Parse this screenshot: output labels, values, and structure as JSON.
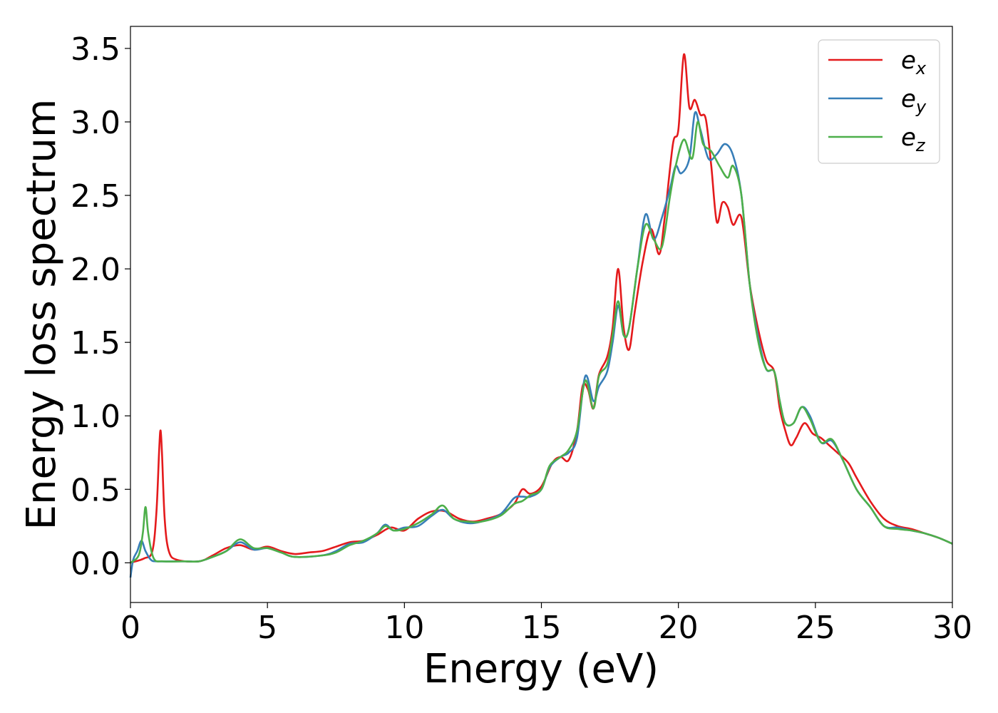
{
  "chart_data": {
    "type": "line",
    "xlabel": "Energy (eV)",
    "ylabel": "Energy loss spectrum",
    "xlim": [
      0,
      30
    ],
    "ylim": [
      -0.27,
      3.65
    ],
    "xticks": [
      0,
      5,
      10,
      15,
      20,
      25,
      30
    ],
    "xtick_labels": [
      "0",
      "5",
      "10",
      "15",
      "20",
      "25",
      "30"
    ],
    "yticks": [
      0.0,
      0.5,
      1.0,
      1.5,
      2.0,
      2.5,
      3.0,
      3.5
    ],
    "ytick_labels": [
      "0.0",
      "0.5",
      "1.0",
      "1.5",
      "2.0",
      "2.5",
      "3.0",
      "3.5"
    ],
    "grid": false,
    "legend_position": "top-right",
    "series": [
      {
        "name": "e",
        "name_sub": "x",
        "color": "#e41a1c",
        "points": [
          [
            0,
            0.0
          ],
          [
            0.5,
            0.03
          ],
          [
            0.8,
            0.08
          ],
          [
            0.95,
            0.35
          ],
          [
            1.05,
            0.78
          ],
          [
            1.1,
            0.9
          ],
          [
            1.15,
            0.75
          ],
          [
            1.25,
            0.3
          ],
          [
            1.4,
            0.08
          ],
          [
            1.7,
            0.02
          ],
          [
            2.5,
            0.01
          ],
          [
            3.0,
            0.05
          ],
          [
            3.5,
            0.1
          ],
          [
            4.0,
            0.12
          ],
          [
            4.5,
            0.09
          ],
          [
            5.0,
            0.11
          ],
          [
            5.5,
            0.08
          ],
          [
            6.0,
            0.06
          ],
          [
            6.5,
            0.07
          ],
          [
            7.0,
            0.08
          ],
          [
            7.5,
            0.11
          ],
          [
            8.0,
            0.14
          ],
          [
            8.5,
            0.15
          ],
          [
            9.0,
            0.19
          ],
          [
            9.5,
            0.24
          ],
          [
            10.0,
            0.22
          ],
          [
            10.5,
            0.3
          ],
          [
            11.0,
            0.35
          ],
          [
            11.5,
            0.35
          ],
          [
            12.0,
            0.3
          ],
          [
            12.5,
            0.28
          ],
          [
            13.0,
            0.3
          ],
          [
            13.5,
            0.33
          ],
          [
            14.0,
            0.4
          ],
          [
            14.3,
            0.5
          ],
          [
            14.6,
            0.47
          ],
          [
            15.0,
            0.52
          ],
          [
            15.4,
            0.68
          ],
          [
            15.7,
            0.72
          ],
          [
            16.0,
            0.7
          ],
          [
            16.3,
            0.9
          ],
          [
            16.5,
            1.2
          ],
          [
            16.7,
            1.18
          ],
          [
            16.9,
            1.05
          ],
          [
            17.1,
            1.28
          ],
          [
            17.4,
            1.4
          ],
          [
            17.6,
            1.6
          ],
          [
            17.8,
            2.0
          ],
          [
            18.0,
            1.6
          ],
          [
            18.2,
            1.45
          ],
          [
            18.4,
            1.7
          ],
          [
            18.7,
            2.05
          ],
          [
            19.0,
            2.27
          ],
          [
            19.3,
            2.1
          ],
          [
            19.5,
            2.35
          ],
          [
            19.8,
            2.85
          ],
          [
            20.0,
            2.95
          ],
          [
            20.2,
            3.46
          ],
          [
            20.4,
            3.1
          ],
          [
            20.6,
            3.15
          ],
          [
            20.8,
            3.05
          ],
          [
            21.0,
            3.02
          ],
          [
            21.2,
            2.7
          ],
          [
            21.4,
            2.32
          ],
          [
            21.6,
            2.45
          ],
          [
            21.8,
            2.42
          ],
          [
            22.0,
            2.3
          ],
          [
            22.3,
            2.35
          ],
          [
            22.6,
            1.9
          ],
          [
            22.9,
            1.6
          ],
          [
            23.2,
            1.38
          ],
          [
            23.5,
            1.3
          ],
          [
            23.7,
            1.05
          ],
          [
            23.9,
            0.9
          ],
          [
            24.1,
            0.8
          ],
          [
            24.3,
            0.85
          ],
          [
            24.6,
            0.95
          ],
          [
            24.9,
            0.88
          ],
          [
            25.2,
            0.85
          ],
          [
            25.5,
            0.8
          ],
          [
            25.8,
            0.75
          ],
          [
            26.2,
            0.68
          ],
          [
            26.5,
            0.58
          ],
          [
            27.0,
            0.42
          ],
          [
            27.5,
            0.3
          ],
          [
            28.0,
            0.25
          ],
          [
            28.5,
            0.23
          ],
          [
            29.0,
            0.2
          ],
          [
            29.5,
            0.17
          ],
          [
            30.0,
            0.13
          ]
        ]
      },
      {
        "name": "e",
        "name_sub": "y",
        "color": "#377eb8",
        "points": [
          [
            0,
            -0.1
          ],
          [
            0.1,
            0.02
          ],
          [
            0.25,
            0.08
          ],
          [
            0.4,
            0.15
          ],
          [
            0.55,
            0.08
          ],
          [
            0.75,
            0.02
          ],
          [
            1.0,
            0.01
          ],
          [
            2.0,
            0.01
          ],
          [
            2.5,
            0.01
          ],
          [
            3.0,
            0.04
          ],
          [
            3.5,
            0.08
          ],
          [
            4.0,
            0.14
          ],
          [
            4.5,
            0.09
          ],
          [
            5.0,
            0.1
          ],
          [
            5.5,
            0.07
          ],
          [
            6.0,
            0.04
          ],
          [
            7.0,
            0.05
          ],
          [
            7.5,
            0.08
          ],
          [
            8.0,
            0.13
          ],
          [
            8.5,
            0.14
          ],
          [
            9.0,
            0.2
          ],
          [
            9.3,
            0.26
          ],
          [
            9.6,
            0.22
          ],
          [
            10.0,
            0.24
          ],
          [
            10.5,
            0.25
          ],
          [
            11.0,
            0.32
          ],
          [
            11.4,
            0.36
          ],
          [
            11.8,
            0.3
          ],
          [
            12.3,
            0.27
          ],
          [
            12.8,
            0.28
          ],
          [
            13.5,
            0.33
          ],
          [
            14.0,
            0.44
          ],
          [
            14.3,
            0.45
          ],
          [
            14.6,
            0.45
          ],
          [
            15.0,
            0.5
          ],
          [
            15.3,
            0.65
          ],
          [
            15.7,
            0.72
          ],
          [
            16.0,
            0.75
          ],
          [
            16.3,
            0.85
          ],
          [
            16.6,
            1.27
          ],
          [
            16.9,
            1.1
          ],
          [
            17.1,
            1.2
          ],
          [
            17.4,
            1.3
          ],
          [
            17.6,
            1.5
          ],
          [
            17.8,
            1.75
          ],
          [
            18.0,
            1.55
          ],
          [
            18.2,
            1.6
          ],
          [
            18.5,
            2.0
          ],
          [
            18.8,
            2.37
          ],
          [
            19.1,
            2.2
          ],
          [
            19.4,
            2.35
          ],
          [
            19.7,
            2.55
          ],
          [
            19.9,
            2.7
          ],
          [
            20.1,
            2.65
          ],
          [
            20.4,
            2.75
          ],
          [
            20.6,
            3.06
          ],
          [
            20.8,
            2.95
          ],
          [
            21.1,
            2.75
          ],
          [
            21.4,
            2.78
          ],
          [
            21.7,
            2.85
          ],
          [
            22.0,
            2.77
          ],
          [
            22.3,
            2.5
          ],
          [
            22.6,
            1.9
          ],
          [
            22.9,
            1.55
          ],
          [
            23.2,
            1.32
          ],
          [
            23.5,
            1.3
          ],
          [
            23.7,
            1.1
          ],
          [
            23.9,
            0.95
          ],
          [
            24.2,
            0.95
          ],
          [
            24.5,
            1.06
          ],
          [
            24.8,
            1.0
          ],
          [
            25.2,
            0.82
          ],
          [
            25.6,
            0.83
          ],
          [
            26.0,
            0.7
          ],
          [
            26.5,
            0.5
          ],
          [
            27.0,
            0.38
          ],
          [
            27.5,
            0.25
          ],
          [
            28.0,
            0.24
          ],
          [
            28.5,
            0.22
          ],
          [
            29.0,
            0.2
          ],
          [
            29.5,
            0.17
          ],
          [
            30.0,
            0.13
          ]
        ]
      },
      {
        "name": "e",
        "name_sub": "z",
        "color": "#4daf4a",
        "points": [
          [
            0,
            0.0
          ],
          [
            0.3,
            0.05
          ],
          [
            0.45,
            0.2
          ],
          [
            0.55,
            0.38
          ],
          [
            0.65,
            0.2
          ],
          [
            0.85,
            0.03
          ],
          [
            1.2,
            0.01
          ],
          [
            2.0,
            0.01
          ],
          [
            2.5,
            0.01
          ],
          [
            3.0,
            0.04
          ],
          [
            3.5,
            0.08
          ],
          [
            4.0,
            0.16
          ],
          [
            4.5,
            0.1
          ],
          [
            5.0,
            0.1
          ],
          [
            5.5,
            0.07
          ],
          [
            6.0,
            0.04
          ],
          [
            7.0,
            0.05
          ],
          [
            7.5,
            0.07
          ],
          [
            8.0,
            0.12
          ],
          [
            8.5,
            0.15
          ],
          [
            9.0,
            0.2
          ],
          [
            9.3,
            0.25
          ],
          [
            9.6,
            0.22
          ],
          [
            10.0,
            0.23
          ],
          [
            10.5,
            0.27
          ],
          [
            11.0,
            0.33
          ],
          [
            11.4,
            0.39
          ],
          [
            11.8,
            0.3
          ],
          [
            12.3,
            0.28
          ],
          [
            12.8,
            0.28
          ],
          [
            13.5,
            0.32
          ],
          [
            14.0,
            0.4
          ],
          [
            14.3,
            0.42
          ],
          [
            14.6,
            0.46
          ],
          [
            15.0,
            0.5
          ],
          [
            15.3,
            0.66
          ],
          [
            15.7,
            0.72
          ],
          [
            16.0,
            0.77
          ],
          [
            16.3,
            0.9
          ],
          [
            16.6,
            1.24
          ],
          [
            16.9,
            1.05
          ],
          [
            17.1,
            1.27
          ],
          [
            17.4,
            1.35
          ],
          [
            17.6,
            1.55
          ],
          [
            17.8,
            1.78
          ],
          [
            18.0,
            1.55
          ],
          [
            18.2,
            1.6
          ],
          [
            18.5,
            2.0
          ],
          [
            18.8,
            2.3
          ],
          [
            19.1,
            2.2
          ],
          [
            19.4,
            2.15
          ],
          [
            19.7,
            2.5
          ],
          [
            19.9,
            2.7
          ],
          [
            20.2,
            2.88
          ],
          [
            20.5,
            2.75
          ],
          [
            20.7,
            3.0
          ],
          [
            20.9,
            2.85
          ],
          [
            21.2,
            2.8
          ],
          [
            21.5,
            2.7
          ],
          [
            21.8,
            2.62
          ],
          [
            22.0,
            2.7
          ],
          [
            22.3,
            2.5
          ],
          [
            22.6,
            1.9
          ],
          [
            22.9,
            1.52
          ],
          [
            23.2,
            1.32
          ],
          [
            23.5,
            1.3
          ],
          [
            23.7,
            1.1
          ],
          [
            23.9,
            0.95
          ],
          [
            24.2,
            0.95
          ],
          [
            24.5,
            1.06
          ],
          [
            24.8,
            0.98
          ],
          [
            25.2,
            0.82
          ],
          [
            25.6,
            0.84
          ],
          [
            26.0,
            0.7
          ],
          [
            26.5,
            0.5
          ],
          [
            27.0,
            0.38
          ],
          [
            27.5,
            0.25
          ],
          [
            28.0,
            0.23
          ],
          [
            28.5,
            0.22
          ],
          [
            29.0,
            0.2
          ],
          [
            29.5,
            0.17
          ],
          [
            30.0,
            0.13
          ]
        ]
      }
    ]
  }
}
